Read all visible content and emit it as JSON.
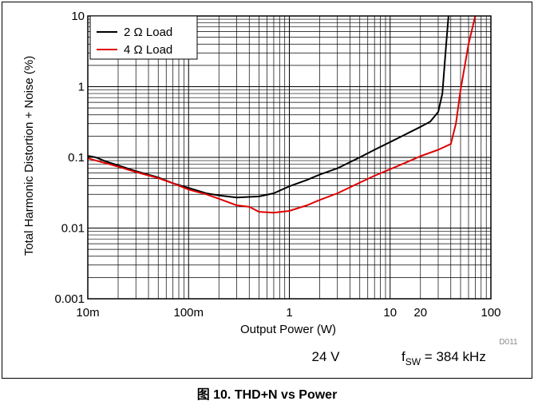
{
  "condition_voltage": "24 V",
  "condition_fsw": {
    "prefix": "f",
    "subscript": "SW",
    "suffix": " = 384 kHz"
  },
  "plot_code": "D011",
  "caption": "图 10. THD+N vs Power",
  "chart_data": {
    "type": "line",
    "xlabel": "Output Power (W)",
    "ylabel": "Total Harmonic Distortion + Noise (%)",
    "xscale": "log",
    "yscale": "log",
    "xlim": [
      0.01,
      100
    ],
    "ylim": [
      0.001,
      10
    ],
    "grid": true,
    "legend_position": "top-left",
    "x_tick_labels": [
      {
        "value": 0.01,
        "label": "10m"
      },
      {
        "value": 0.1,
        "label": "100m"
      },
      {
        "value": 1,
        "label": "1"
      },
      {
        "value": 10,
        "label": "10"
      },
      {
        "value": 20,
        "label": "20"
      },
      {
        "value": 100,
        "label": "100"
      }
    ],
    "y_tick_labels": [
      {
        "value": 0.001,
        "label": "0.001"
      },
      {
        "value": 0.01,
        "label": "0.01"
      },
      {
        "value": 0.1,
        "label": "0.1"
      },
      {
        "value": 1,
        "label": "1"
      },
      {
        "value": 10,
        "label": "10"
      }
    ],
    "series": [
      {
        "name": "2 Ω Load",
        "color": "#000000",
        "points": [
          [
            0.01,
            0.105
          ],
          [
            0.012,
            0.1
          ],
          [
            0.015,
            0.088
          ],
          [
            0.02,
            0.077
          ],
          [
            0.03,
            0.064
          ],
          [
            0.05,
            0.052
          ],
          [
            0.07,
            0.043
          ],
          [
            0.1,
            0.037
          ],
          [
            0.15,
            0.031
          ],
          [
            0.2,
            0.029
          ],
          [
            0.3,
            0.027
          ],
          [
            0.5,
            0.028
          ],
          [
            0.7,
            0.031
          ],
          [
            1,
            0.039
          ],
          [
            1.5,
            0.048
          ],
          [
            2,
            0.057
          ],
          [
            3,
            0.07
          ],
          [
            5,
            0.1
          ],
          [
            7,
            0.128
          ],
          [
            10,
            0.165
          ],
          [
            15,
            0.22
          ],
          [
            20,
            0.27
          ],
          [
            25,
            0.32
          ],
          [
            30,
            0.44
          ],
          [
            33,
            0.8
          ],
          [
            36,
            4
          ],
          [
            38,
            10
          ]
        ]
      },
      {
        "name": "4 Ω Load",
        "color": "#e00000",
        "points": [
          [
            0.01,
            0.097
          ],
          [
            0.015,
            0.083
          ],
          [
            0.02,
            0.074
          ],
          [
            0.03,
            0.062
          ],
          [
            0.05,
            0.051
          ],
          [
            0.07,
            0.043
          ],
          [
            0.1,
            0.035
          ],
          [
            0.15,
            0.03
          ],
          [
            0.2,
            0.026
          ],
          [
            0.3,
            0.021
          ],
          [
            0.4,
            0.02
          ],
          [
            0.5,
            0.017
          ],
          [
            0.7,
            0.0165
          ],
          [
            1,
            0.0175
          ],
          [
            1.5,
            0.021
          ],
          [
            2,
            0.025
          ],
          [
            3,
            0.031
          ],
          [
            5,
            0.044
          ],
          [
            7,
            0.055
          ],
          [
            10,
            0.068
          ],
          [
            15,
            0.087
          ],
          [
            20,
            0.104
          ],
          [
            30,
            0.128
          ],
          [
            40,
            0.155
          ],
          [
            45,
            0.3
          ],
          [
            50,
            0.9
          ],
          [
            60,
            4
          ],
          [
            70,
            10
          ]
        ]
      }
    ]
  }
}
